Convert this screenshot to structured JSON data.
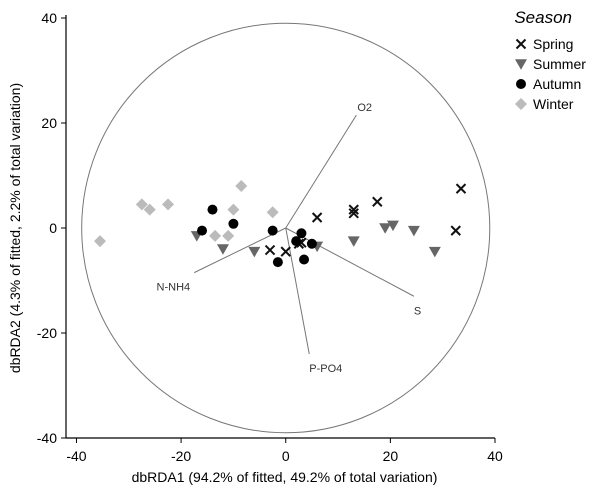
{
  "chart_data": {
    "type": "scatter",
    "xlabel": "dbRDA1 (94.2% of fitted, 49.2% of total variation)",
    "ylabel": "dbRDA2 (4.3% of fitted, 2.2% of total variation)",
    "xlim": [
      -42,
      40
    ],
    "ylim": [
      -40,
      40
    ],
    "xticks": [
      -40,
      -20,
      0,
      20,
      40
    ],
    "yticks": [
      -40,
      -20,
      0,
      20,
      40
    ],
    "grid": false,
    "legend": {
      "title": "Season",
      "placement": "top-right"
    },
    "correlation_circle": {
      "center": [
        0,
        0
      ],
      "radius": 39
    },
    "series": [
      {
        "name": "Spring",
        "marker": "x",
        "color": "#111111",
        "points": [
          [
            13,
            3.5
          ],
          [
            13,
            2.8
          ],
          [
            17.5,
            5
          ],
          [
            33.5,
            7.5
          ],
          [
            32.5,
            -0.5
          ],
          [
            6,
            2
          ],
          [
            -3,
            -4.2
          ],
          [
            0,
            -4.5
          ],
          [
            2.5,
            -3
          ],
          [
            3,
            -2.8
          ]
        ]
      },
      {
        "name": "Summer",
        "marker": "triangle-down",
        "color": "#666666",
        "points": [
          [
            -17,
            -1.5
          ],
          [
            -12,
            -4
          ],
          [
            -6,
            -4.5
          ],
          [
            6,
            -3.5
          ],
          [
            13,
            -2.5
          ],
          [
            19,
            0
          ],
          [
            20.5,
            0.5
          ],
          [
            24.5,
            -0.5
          ],
          [
            28.5,
            -4.5
          ]
        ]
      },
      {
        "name": "Autumn",
        "marker": "circle",
        "color": "#000000",
        "points": [
          [
            -16,
            -0.5
          ],
          [
            -14,
            3.5
          ],
          [
            -10,
            0.8
          ],
          [
            -2.5,
            -0.5
          ],
          [
            -1.5,
            -6.5
          ],
          [
            2,
            -2.5
          ],
          [
            3,
            -1
          ],
          [
            5,
            -3
          ],
          [
            3.5,
            -6
          ]
        ]
      },
      {
        "name": "Winter",
        "marker": "diamond",
        "color": "#bbbbbb",
        "points": [
          [
            -35.5,
            -2.5
          ],
          [
            -27.5,
            4.5
          ],
          [
            -26,
            3.5
          ],
          [
            -22.5,
            4.5
          ],
          [
            -13.5,
            -1.5
          ],
          [
            -11,
            -1.5
          ],
          [
            -10,
            3.5
          ],
          [
            -8.5,
            8
          ],
          [
            -2.5,
            3
          ]
        ]
      }
    ],
    "vectors": [
      {
        "name": "O2",
        "end": [
          13.5,
          21.5
        ]
      },
      {
        "name": "S",
        "end": [
          24.5,
          -13
        ]
      },
      {
        "name": "N-NH4",
        "end": [
          -17.5,
          -8.5
        ]
      },
      {
        "name": "P-PO4",
        "end": [
          4.5,
          -24
        ]
      }
    ]
  }
}
